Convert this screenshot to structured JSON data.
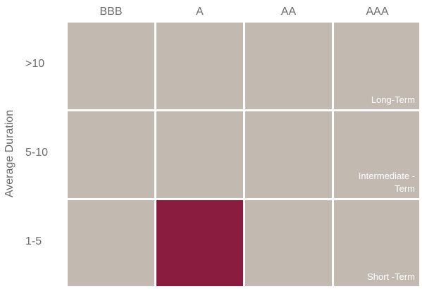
{
  "chart_data": {
    "type": "heatmap",
    "title": "",
    "xlabel": "",
    "ylabel": "Average Duration",
    "x_categories": [
      "BBB",
      "A",
      "AA",
      "AAA"
    ],
    "y_categories": [
      ">10",
      "5-10",
      "1-5"
    ],
    "selected_cell": {
      "x": "A",
      "y": "1-5"
    },
    "band_labels": [
      {
        "row": ">10",
        "text": "Long-Term"
      },
      {
        "row": "5-10",
        "text": "Intermediate -\nTerm"
      },
      {
        "row": "1-5",
        "text": "Short -Term"
      }
    ],
    "colors": {
      "cell_default": "#c2b9b1",
      "cell_selected": "#8a1c3f",
      "grid_line": "#ffffff",
      "label_text": "#6b6b6b"
    }
  }
}
